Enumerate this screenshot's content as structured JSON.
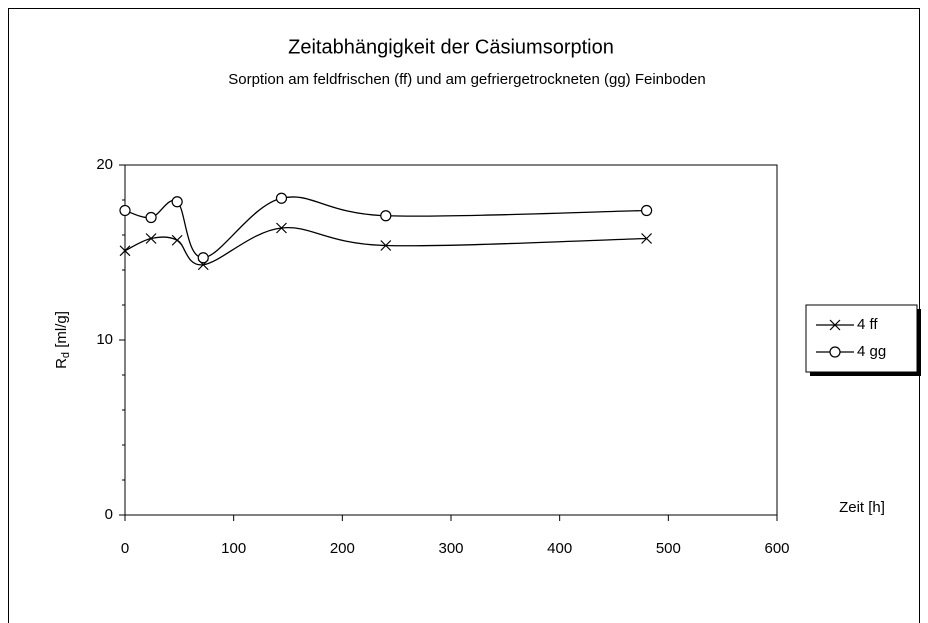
{
  "chart_data": {
    "type": "line",
    "title": "Zeitabhängigkeit der Cäsiumsorption",
    "subtitle": "Sorption am feldfrischen (ff) und am gefriergetrockneten (gg) Feinboden",
    "ylabel": {
      "main": "R",
      "sub": "d",
      "rest": " [ml/g]"
    },
    "xlabel": "Zeit [h]",
    "smooth": true,
    "legend": "right",
    "series": [
      {
        "name": "4 ff",
        "color": "#000000",
        "marker": "x",
        "x": [
          0,
          24,
          48,
          72,
          144,
          240,
          480
        ],
        "values": [
          15.1,
          15.8,
          15.7,
          14.3,
          16.4,
          15.4,
          15.8
        ]
      },
      {
        "name": "4 gg",
        "color": "#000000",
        "marker": "o",
        "x": [
          0,
          24,
          48,
          72,
          144,
          240,
          480
        ],
        "values": [
          17.4,
          17.0,
          17.9,
          14.7,
          18.1,
          17.1,
          17.4
        ]
      }
    ],
    "xlim": [
      0,
      600
    ],
    "xticks": [
      0,
      100,
      200,
      300,
      400,
      500,
      600
    ],
    "ylim": [
      0,
      20
    ],
    "yticks": [
      0,
      10,
      20
    ],
    "yminorticks": [
      2,
      4,
      6,
      8,
      12,
      14,
      16,
      18
    ]
  }
}
